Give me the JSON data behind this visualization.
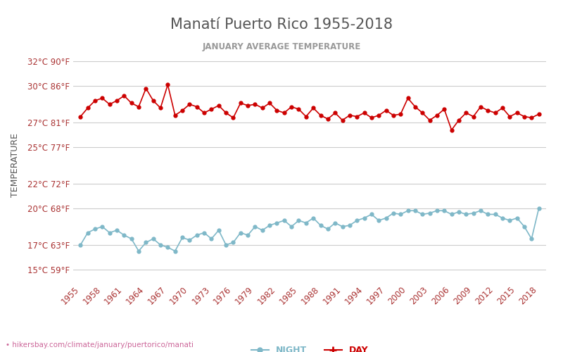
{
  "title": "Manatí Puerto Rico 1955-2018",
  "subtitle": "JANUARY AVERAGE TEMPERATURE",
  "ylabel": "TEMPERATURE",
  "footer": "hikersbay.com/climate/january/puertorico/manati",
  "years": [
    1955,
    1956,
    1957,
    1958,
    1959,
    1960,
    1961,
    1962,
    1963,
    1964,
    1965,
    1966,
    1967,
    1968,
    1969,
    1970,
    1971,
    1972,
    1973,
    1974,
    1975,
    1976,
    1977,
    1978,
    1979,
    1980,
    1981,
    1982,
    1983,
    1984,
    1985,
    1986,
    1987,
    1988,
    1989,
    1990,
    1991,
    1992,
    1993,
    1994,
    1995,
    1996,
    1997,
    1998,
    1999,
    2000,
    2001,
    2002,
    2003,
    2004,
    2005,
    2006,
    2007,
    2008,
    2009,
    2010,
    2011,
    2012,
    2013,
    2014,
    2015,
    2016,
    2017,
    2018
  ],
  "day_temps": [
    27.5,
    28.2,
    28.8,
    29.0,
    28.5,
    28.8,
    29.2,
    28.6,
    28.3,
    29.8,
    28.8,
    28.2,
    30.1,
    27.6,
    28.0,
    28.5,
    28.3,
    27.8,
    28.1,
    28.4,
    27.8,
    27.4,
    28.6,
    28.4,
    28.5,
    28.2,
    28.6,
    28.0,
    27.8,
    28.3,
    28.1,
    27.5,
    28.2,
    27.6,
    27.3,
    27.8,
    27.2,
    27.6,
    27.5,
    27.8,
    27.4,
    27.6,
    28.0,
    27.6,
    27.7,
    29.0,
    28.3,
    27.8,
    27.2,
    27.6,
    28.1,
    26.4,
    27.2,
    27.8,
    27.5,
    28.3,
    28.0,
    27.8,
    28.2,
    27.5,
    27.8,
    27.5,
    27.4,
    27.7
  ],
  "night_temps": [
    17.0,
    18.0,
    18.3,
    18.5,
    18.0,
    18.2,
    17.8,
    17.5,
    16.5,
    17.2,
    17.5,
    17.0,
    16.8,
    16.5,
    17.6,
    17.4,
    17.8,
    18.0,
    17.5,
    18.2,
    17.0,
    17.2,
    18.0,
    17.8,
    18.5,
    18.2,
    18.6,
    18.8,
    19.0,
    18.5,
    19.0,
    18.8,
    19.2,
    18.6,
    18.3,
    18.8,
    18.5,
    18.6,
    19.0,
    19.2,
    19.5,
    19.0,
    19.2,
    19.6,
    19.5,
    19.8,
    19.8,
    19.5,
    19.6,
    19.8,
    19.8,
    19.5,
    19.7,
    19.5,
    19.6,
    19.8,
    19.5,
    19.5,
    19.2,
    19.0,
    19.2,
    18.5,
    17.5,
    20.0
  ],
  "yticks_c": [
    15,
    17,
    20,
    22,
    25,
    27,
    30,
    32
  ],
  "yticks_f": [
    59,
    63,
    68,
    72,
    77,
    81,
    86,
    90
  ],
  "xtick_years": [
    1955,
    1958,
    1961,
    1964,
    1967,
    1970,
    1973,
    1976,
    1979,
    1982,
    1985,
    1988,
    1991,
    1994,
    1997,
    2000,
    2003,
    2006,
    2009,
    2012,
    2015,
    2018
  ],
  "day_color": "#cc0000",
  "night_color": "#7fb8c8",
  "grid_color": "#cccccc",
  "title_color": "#555555",
  "subtitle_color": "#999999",
  "ylabel_color": "#555555",
  "tick_color": "#aa3333",
  "bg_color": "#ffffff",
  "footer_color": "#cc6699"
}
